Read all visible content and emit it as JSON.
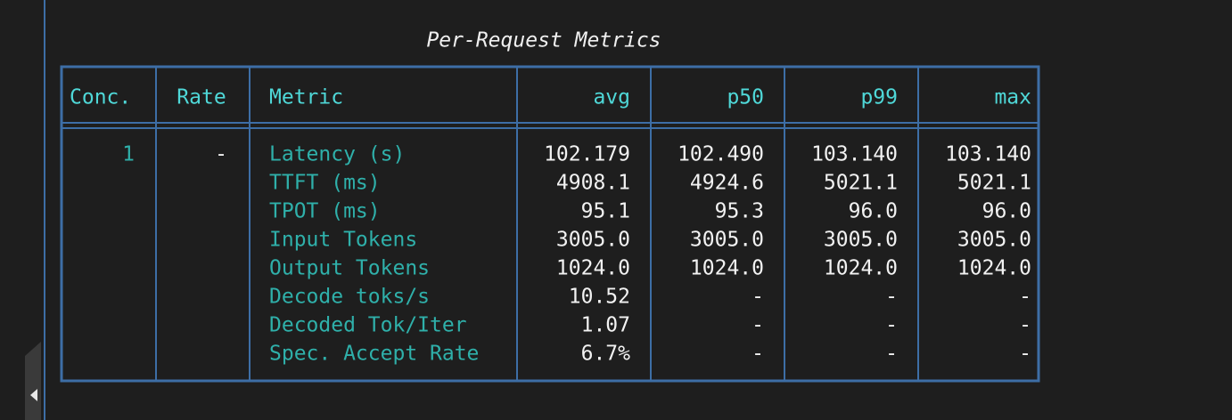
{
  "title": "Per-Request Metrics",
  "table": {
    "headers": [
      "Conc.",
      "Rate",
      "Metric",
      "avg",
      "p50",
      "p99",
      "max"
    ],
    "groups": [
      {
        "conc": "1",
        "rate": "-",
        "rows": [
          [
            "Latency (s)",
            "102.179",
            "102.490",
            "103.140",
            "103.140"
          ],
          [
            "TTFT (ms)",
            "4908.1",
            "4924.6",
            "5021.1",
            "5021.1"
          ],
          [
            "TPOT (ms)",
            "95.1",
            "95.3",
            "96.0",
            "96.0"
          ],
          [
            "Input Tokens",
            "3005.0",
            "3005.0",
            "3005.0",
            "3005.0"
          ],
          [
            "Output Tokens",
            "1024.0",
            "1024.0",
            "1024.0",
            "1024.0"
          ],
          [
            "Decode toks/s",
            "10.52",
            "-",
            "-",
            "-"
          ],
          [
            "Decoded Tok/Iter",
            "1.07",
            "-",
            "-",
            "-"
          ],
          [
            "Spec. Accept Rate",
            "6.7%",
            "-",
            "-",
            "-"
          ]
        ]
      }
    ]
  }
}
